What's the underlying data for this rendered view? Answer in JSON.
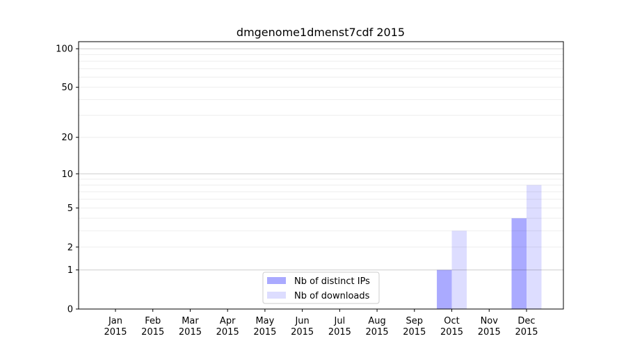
{
  "chart_data": {
    "type": "bar",
    "title": "dmgenome1dmenst7cdf 2015",
    "xlabel": "",
    "ylabel": "",
    "yscale": "log(1+y)",
    "ylim": [
      0,
      120
    ],
    "yticks": [
      0,
      1,
      2,
      5,
      10,
      20,
      50,
      100
    ],
    "ytick_labels": [
      "0",
      "1",
      "2",
      "5",
      "10",
      "20",
      "50",
      "100"
    ],
    "grid": true,
    "categories": [
      "Jan\n2015",
      "Feb\n2015",
      "Mar\n2015",
      "Apr\n2015",
      "May\n2015",
      "Jun\n2015",
      "Jul\n2015",
      "Aug\n2015",
      "Sep\n2015",
      "Oct\n2015",
      "Nov\n2015",
      "Dec\n2015"
    ],
    "series": [
      {
        "name": "Nb of distinct IPs",
        "color": "#aaaaff",
        "values": [
          0,
          0,
          0,
          0,
          0,
          0,
          0,
          0,
          0,
          1,
          0,
          4
        ]
      },
      {
        "name": "Nb of downloads",
        "color": "#ddddff",
        "values": [
          0,
          0,
          0,
          0,
          0,
          0,
          0,
          0,
          0,
          3,
          0,
          8
        ]
      }
    ],
    "legend_position": "lower-center"
  }
}
